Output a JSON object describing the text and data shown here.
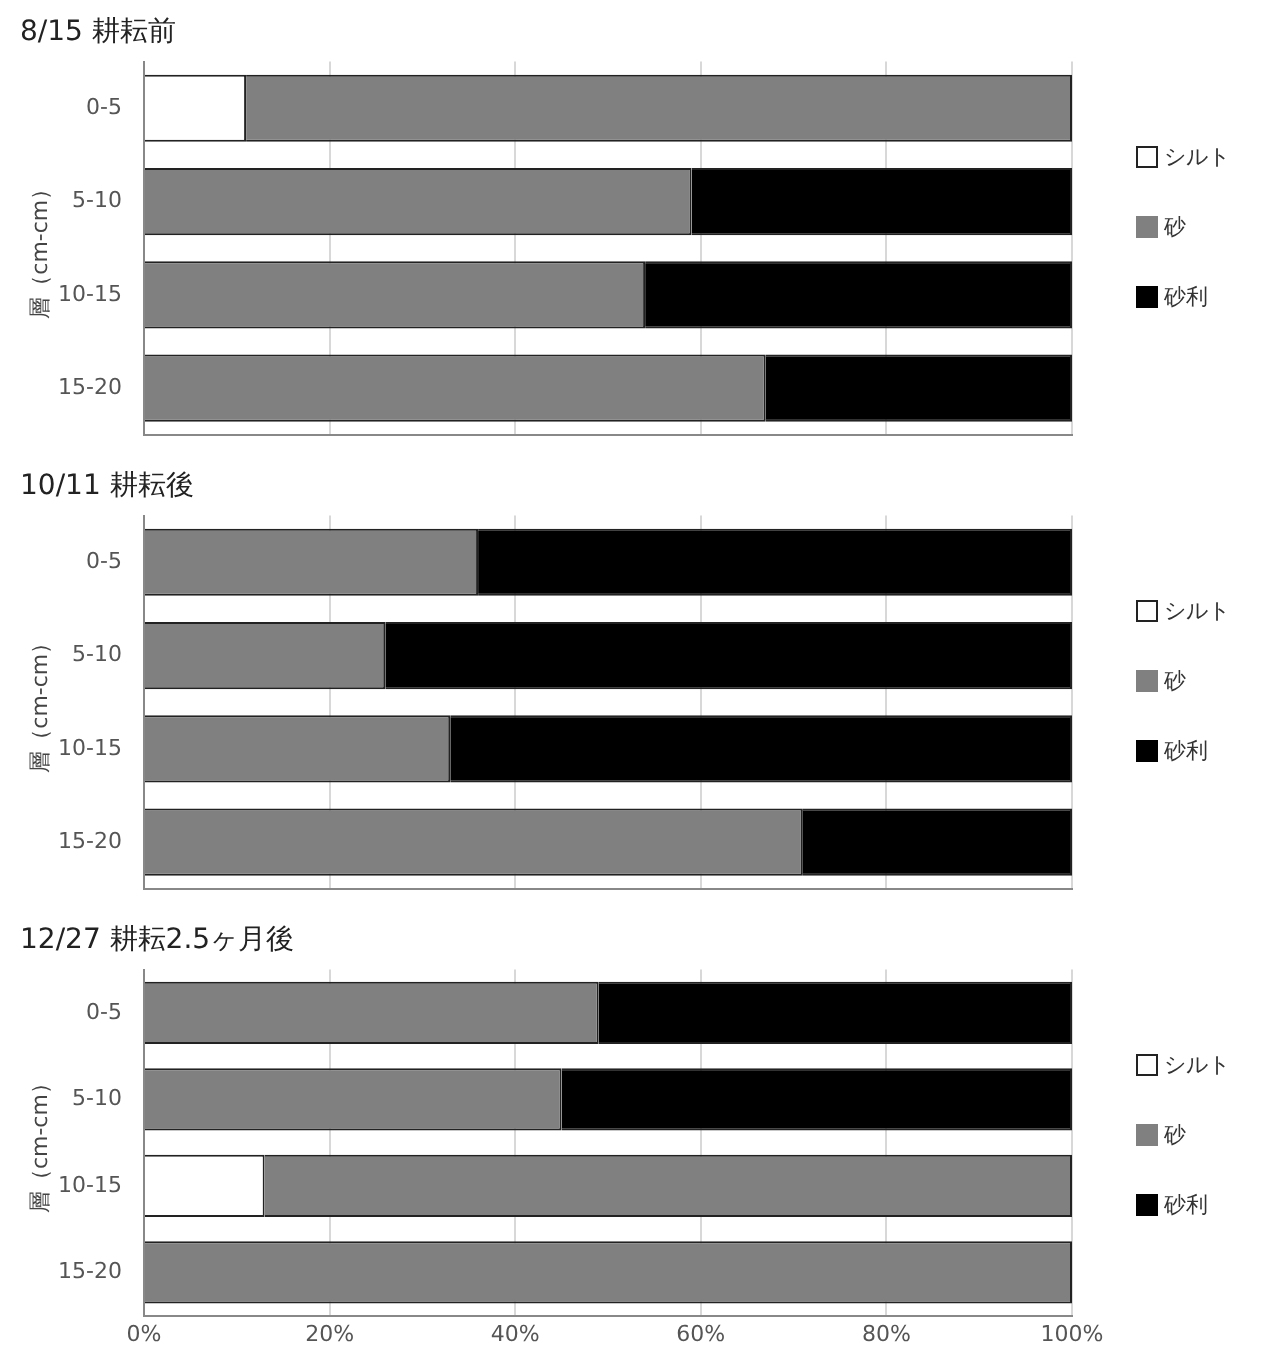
{
  "chart_data": [
    {
      "type": "bar",
      "orientation": "horizontal",
      "stacked": true,
      "title": "8/15 耕耘前",
      "ylabel": "層（cm-cm）",
      "categories": [
        "0-5",
        "5-10",
        "10-15",
        "15-20"
      ],
      "series": [
        {
          "name": "シルト",
          "color": "#ffffff",
          "values": [
            11,
            0,
            0,
            0
          ]
        },
        {
          "name": "砂",
          "color": "#808080",
          "values": [
            89,
            59,
            54,
            67
          ]
        },
        {
          "name": "砂利",
          "color": "#000000",
          "values": [
            0,
            41,
            46,
            33
          ]
        }
      ],
      "xlim": [
        0,
        100
      ],
      "xticks": [
        0,
        20,
        40,
        60,
        80,
        100
      ],
      "tick_labels": "y",
      "grid": "x",
      "legend": "right"
    },
    {
      "type": "bar",
      "orientation": "horizontal",
      "stacked": true,
      "title": "10/11 耕耘後",
      "ylabel": "層（cm-cm）",
      "categories": [
        "0-5",
        "5-10",
        "10-15",
        "15-20"
      ],
      "series": [
        {
          "name": "シルト",
          "color": "#ffffff",
          "values": [
            0,
            0,
            0,
            0
          ]
        },
        {
          "name": "砂",
          "color": "#808080",
          "values": [
            36,
            26,
            33,
            71
          ]
        },
        {
          "name": "砂利",
          "color": "#000000",
          "values": [
            64,
            74,
            67,
            29
          ]
        }
      ],
      "xlim": [
        0,
        100
      ],
      "xticks": [
        0,
        20,
        40,
        60,
        80,
        100
      ],
      "tick_labels": "y",
      "grid": "x",
      "legend": "right"
    },
    {
      "type": "bar",
      "orientation": "horizontal",
      "stacked": true,
      "title": "12/27 耕耘2.5ヶ月後",
      "ylabel": "層（cm-cm）",
      "categories": [
        "0-5",
        "5-10",
        "10-15",
        "15-20"
      ],
      "series": [
        {
          "name": "シルト",
          "color": "#ffffff",
          "values": [
            0,
            0,
            13,
            0
          ]
        },
        {
          "name": "砂",
          "color": "#808080",
          "values": [
            49,
            45,
            87,
            100
          ]
        },
        {
          "name": "砂利",
          "color": "#000000",
          "values": [
            51,
            55,
            0,
            0
          ]
        }
      ],
      "xlim": [
        0,
        100
      ],
      "xticks": [
        {
          "value": 0,
          "label": "0%"
        },
        {
          "value": 20,
          "label": "20%"
        },
        {
          "value": 40,
          "label": "40%"
        },
        {
          "value": 60,
          "label": "60%"
        },
        {
          "value": 80,
          "label": "80%"
        },
        {
          "value": 100,
          "label": "100%"
        }
      ],
      "grid": "x",
      "legend": "right"
    }
  ]
}
